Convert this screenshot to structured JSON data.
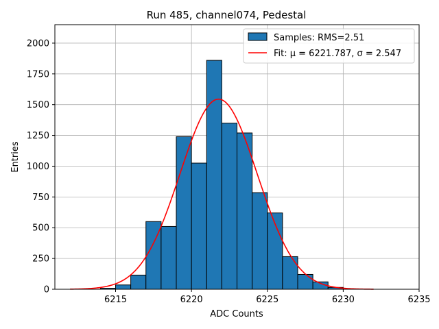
{
  "chart_data": {
    "type": "histogram",
    "title": "Run 485, channel074, Pedestal",
    "xlabel": "ADC Counts",
    "ylabel": "Entries",
    "xlim": [
      6211,
      6235
    ],
    "ylim": [
      0,
      2150
    ],
    "xticks": [
      6215,
      6220,
      6225,
      6230,
      6235
    ],
    "yticks": [
      0,
      250,
      500,
      750,
      1000,
      1250,
      1500,
      1750,
      2000
    ],
    "grid": true,
    "legend_position": "top-right",
    "colors": {
      "bar_fill": "#1f77b4",
      "bar_edge": "#000000",
      "fit_line": "#ff0000",
      "grid": "#b0b0b0"
    },
    "bins": [
      {
        "left": 6214,
        "right": 6215,
        "count": 8
      },
      {
        "left": 6215,
        "right": 6216,
        "count": 35
      },
      {
        "left": 6216,
        "right": 6217,
        "count": 115
      },
      {
        "left": 6217,
        "right": 6218,
        "count": 550
      },
      {
        "left": 6218,
        "right": 6219,
        "count": 510
      },
      {
        "left": 6219,
        "right": 6220,
        "count": 1240
      },
      {
        "left": 6220,
        "right": 6221,
        "count": 1025
      },
      {
        "left": 6221,
        "right": 6222,
        "count": 1860
      },
      {
        "left": 6222,
        "right": 6223,
        "count": 1350
      },
      {
        "left": 6223,
        "right": 6224,
        "count": 1270
      },
      {
        "left": 6224,
        "right": 6225,
        "count": 785
      },
      {
        "left": 6225,
        "right": 6226,
        "count": 620
      },
      {
        "left": 6226,
        "right": 6227,
        "count": 265
      },
      {
        "left": 6227,
        "right": 6228,
        "count": 120
      },
      {
        "left": 6228,
        "right": 6229,
        "count": 60
      },
      {
        "left": 6229,
        "right": 6230,
        "count": 15
      }
    ],
    "fit": {
      "mu": 6221.787,
      "sigma": 2.547,
      "amplitude": 1545,
      "x_range": [
        6212,
        6232
      ]
    },
    "legend": {
      "samples_label": "Samples: RMS=2.51",
      "fit_label": "Fit: μ = 6221.787, σ = 2.547"
    }
  }
}
